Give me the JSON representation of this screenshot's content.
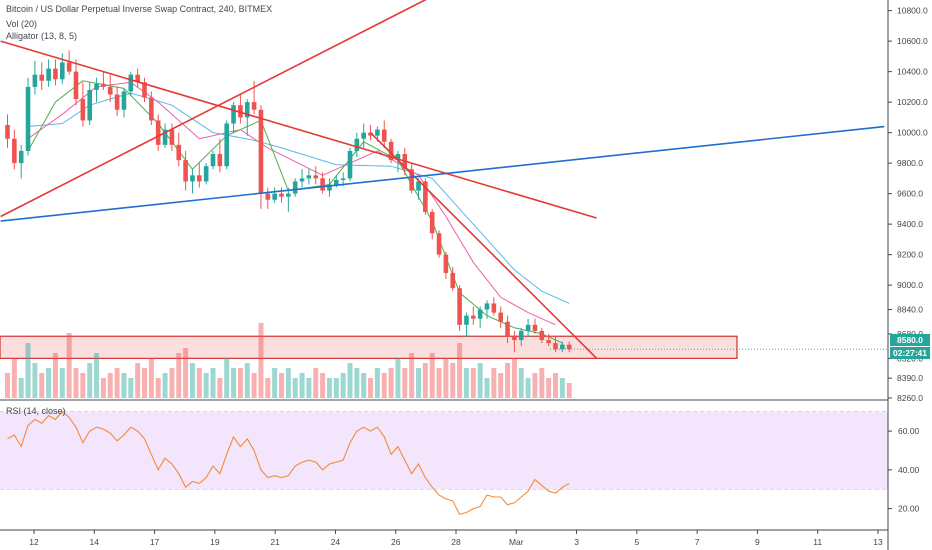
{
  "header": {
    "symbol_title": "Bitcoin / US Dollar Perpetual Inverse Swap Contract, 240, BITMEX",
    "volume_label": "Vol (20)",
    "alligator_label": "Alligator (13, 8, 5)",
    "rsi_label": "RSI (14, close)"
  },
  "price_axis": {
    "ticks": [
      "10800.0",
      "10600.0",
      "10400.0",
      "10200.0",
      "10000.0",
      "9800.0",
      "9600.0",
      "9400.0",
      "9200.0",
      "9000.0",
      "8840.0",
      "8680.0",
      "8520.0",
      "8390.0",
      "8260.0"
    ],
    "last_price": "8580.0",
    "countdown": "02:27:41"
  },
  "rsi_axis": {
    "ticks": [
      "60.00",
      "40.00",
      "20.00"
    ]
  },
  "time_axis": {
    "ticks": [
      "12",
      "14",
      "17",
      "19",
      "21",
      "24",
      "26",
      "28",
      "Mar",
      "3",
      "5",
      "7",
      "9",
      "11",
      "13"
    ]
  },
  "colors": {
    "up": "#26a69a",
    "down": "#ef5350",
    "trendline_red": "#e53935",
    "trendline_blue": "#1e6fcf",
    "jaw": "#5bb8e8",
    "teeth": "#ef5fa7",
    "lips": "#4caf50",
    "rsi_line": "#f28b3c",
    "rsi_band": "#f3e5fb",
    "zone_fill": "#f9d3d3",
    "zone_border": "#d32f2f"
  },
  "chart_data": {
    "type": "candlestick",
    "title": "Bitcoin / US Dollar Perpetual Inverse Swap Contract, 240, BITMEX",
    "xlabel": "",
    "ylabel": "",
    "ylim": [
      8260,
      10850
    ],
    "rsi_ylim": [
      10,
      75
    ],
    "x_tick_labels": [
      "12",
      "14",
      "17",
      "19",
      "21",
      "24",
      "26",
      "28",
      "Mar",
      "3",
      "5",
      "7",
      "9",
      "11",
      "13"
    ],
    "candles": [
      [
        10050,
        10120,
        9900,
        9960
      ],
      [
        9960,
        10020,
        9760,
        9800
      ],
      [
        9800,
        9920,
        9700,
        9880
      ],
      [
        9880,
        10360,
        9850,
        10300
      ],
      [
        10300,
        10470,
        10250,
        10380
      ],
      [
        10380,
        10460,
        10280,
        10340
      ],
      [
        10340,
        10480,
        10300,
        10420
      ],
      [
        10420,
        10480,
        10310,
        10350
      ],
      [
        10350,
        10520,
        10320,
        10460
      ],
      [
        10460,
        10540,
        10380,
        10400
      ],
      [
        10400,
        10480,
        10180,
        10220
      ],
      [
        10220,
        10330,
        10040,
        10080
      ],
      [
        10080,
        10330,
        10050,
        10280
      ],
      [
        10280,
        10360,
        10200,
        10320
      ],
      [
        10320,
        10400,
        10280,
        10300
      ],
      [
        10300,
        10380,
        10200,
        10250
      ],
      [
        10250,
        10300,
        10110,
        10150
      ],
      [
        10150,
        10290,
        10100,
        10270
      ],
      [
        10270,
        10400,
        10240,
        10380
      ],
      [
        10380,
        10420,
        10300,
        10330
      ],
      [
        10330,
        10360,
        10200,
        10230
      ],
      [
        10230,
        10270,
        10050,
        10080
      ],
      [
        10080,
        10120,
        9880,
        9920
      ],
      [
        9920,
        10060,
        9900,
        10020
      ],
      [
        10020,
        10060,
        9880,
        9920
      ],
      [
        9920,
        10000,
        9780,
        9820
      ],
      [
        9820,
        9880,
        9620,
        9680
      ],
      [
        9680,
        9760,
        9600,
        9720
      ],
      [
        9720,
        9800,
        9640,
        9680
      ],
      [
        9680,
        9800,
        9660,
        9780
      ],
      [
        9780,
        9880,
        9760,
        9860
      ],
      [
        9860,
        9960,
        9740,
        9780
      ],
      [
        9780,
        10080,
        9760,
        10060
      ],
      [
        10060,
        10200,
        10000,
        10180
      ],
      [
        10180,
        10250,
        10060,
        10100
      ],
      [
        10100,
        10220,
        9980,
        10200
      ],
      [
        10200,
        10340,
        10120,
        10150
      ],
      [
        10150,
        10180,
        9500,
        9600
      ],
      [
        9600,
        9640,
        9500,
        9560
      ],
      [
        9560,
        9640,
        9540,
        9600
      ],
      [
        9600,
        9640,
        9540,
        9580
      ],
      [
        9580,
        9640,
        9480,
        9600
      ],
      [
        9600,
        9700,
        9580,
        9680
      ],
      [
        9680,
        9760,
        9640,
        9700
      ],
      [
        9700,
        9760,
        9660,
        9720
      ],
      [
        9720,
        9780,
        9660,
        9700
      ],
      [
        9700,
        9740,
        9600,
        9620
      ],
      [
        9620,
        9700,
        9580,
        9660
      ],
      [
        9660,
        9720,
        9640,
        9690
      ],
      [
        9690,
        9740,
        9650,
        9700
      ],
      [
        9700,
        9900,
        9680,
        9880
      ],
      [
        9880,
        10000,
        9840,
        9960
      ],
      [
        9960,
        10060,
        9900,
        10000
      ],
      [
        10000,
        10050,
        9950,
        9980
      ],
      [
        9980,
        10040,
        9940,
        10020
      ],
      [
        10020,
        10080,
        9900,
        9940
      ],
      [
        9940,
        9960,
        9800,
        9820
      ],
      [
        9820,
        9880,
        9740,
        9860
      ],
      [
        9860,
        9900,
        9720,
        9760
      ],
      [
        9760,
        9800,
        9600,
        9620
      ],
      [
        9620,
        9700,
        9560,
        9680
      ],
      [
        9680,
        9700,
        9460,
        9480
      ],
      [
        9480,
        9500,
        9300,
        9340
      ],
      [
        9340,
        9360,
        9180,
        9200
      ],
      [
        9200,
        9220,
        9040,
        9080
      ],
      [
        9080,
        9120,
        8960,
        8980
      ],
      [
        8980,
        9000,
        8700,
        8740
      ],
      [
        8740,
        8820,
        8660,
        8800
      ],
      [
        8800,
        8860,
        8740,
        8780
      ],
      [
        8780,
        8860,
        8720,
        8840
      ],
      [
        8840,
        8900,
        8780,
        8880
      ],
      [
        8880,
        8920,
        8800,
        8820
      ],
      [
        8820,
        8860,
        8720,
        8760
      ],
      [
        8760,
        8800,
        8620,
        8660
      ],
      [
        8660,
        8700,
        8560,
        8640
      ],
      [
        8640,
        8720,
        8600,
        8700
      ],
      [
        8700,
        8780,
        8660,
        8740
      ],
      [
        8740,
        8780,
        8680,
        8700
      ],
      [
        8700,
        8720,
        8620,
        8640
      ],
      [
        8640,
        8680,
        8600,
        8620
      ],
      [
        8620,
        8660,
        8560,
        8580
      ],
      [
        8580,
        8630,
        8560,
        8610
      ],
      [
        8610,
        8630,
        8560,
        8580
      ]
    ],
    "volume": [
      0.25,
      0.4,
      0.2,
      0.55,
      0.35,
      0.25,
      0.3,
      0.45,
      0.3,
      0.65,
      0.3,
      0.25,
      0.35,
      0.45,
      0.2,
      0.25,
      0.3,
      0.25,
      0.2,
      0.35,
      0.3,
      0.4,
      0.2,
      0.25,
      0.3,
      0.45,
      0.5,
      0.35,
      0.3,
      0.25,
      0.3,
      0.2,
      0.4,
      0.3,
      0.3,
      0.35,
      0.25,
      0.75,
      0.2,
      0.3,
      0.25,
      0.3,
      0.2,
      0.25,
      0.2,
      0.3,
      0.25,
      0.2,
      0.2,
      0.25,
      0.35,
      0.3,
      0.25,
      0.2,
      0.3,
      0.25,
      0.3,
      0.4,
      0.3,
      0.45,
      0.3,
      0.35,
      0.45,
      0.3,
      0.4,
      0.35,
      0.55,
      0.3,
      0.3,
      0.35,
      0.2,
      0.3,
      0.25,
      0.35,
      0.4,
      0.3,
      0.2,
      0.25,
      0.3,
      0.2,
      0.25,
      0.2,
      0.15
    ],
    "rsi": [
      56,
      58,
      52,
      63,
      66,
      64,
      68,
      66,
      70,
      67,
      62,
      54,
      60,
      62,
      61,
      59,
      55,
      58,
      62,
      60,
      56,
      48,
      40,
      46,
      43,
      38,
      31,
      34,
      33,
      36,
      42,
      38,
      48,
      57,
      52,
      56,
      50,
      40,
      36,
      37,
      36,
      37,
      42,
      44,
      45,
      44,
      40,
      43,
      44,
      45,
      54,
      60,
      62,
      60,
      62,
      57,
      48,
      52,
      45,
      38,
      43,
      36,
      31,
      27,
      25,
      24,
      17,
      18,
      20,
      21,
      27,
      26,
      26,
      22,
      23,
      26,
      29,
      35,
      32,
      29,
      28,
      31,
      33
    ],
    "jaw": [
      [
        3,
        10040
      ],
      [
        8,
        10060
      ],
      [
        12,
        10180
      ],
      [
        18,
        10260
      ],
      [
        24,
        10180
      ],
      [
        30,
        10000
      ],
      [
        36,
        9950
      ],
      [
        40,
        9900
      ],
      [
        48,
        9790
      ],
      [
        56,
        9780
      ],
      [
        62,
        9700
      ],
      [
        66,
        9500
      ],
      [
        70,
        9300
      ],
      [
        74,
        9100
      ],
      [
        78,
        8960
      ],
      [
        82,
        8880
      ]
    ],
    "teeth": [
      [
        3,
        9960
      ],
      [
        8,
        10120
      ],
      [
        13,
        10300
      ],
      [
        18,
        10330
      ],
      [
        22,
        10200
      ],
      [
        28,
        9960
      ],
      [
        34,
        10020
      ],
      [
        38,
        9900
      ],
      [
        46,
        9720
      ],
      [
        54,
        9880
      ],
      [
        60,
        9720
      ],
      [
        64,
        9450
      ],
      [
        68,
        9150
      ],
      [
        72,
        8920
      ],
      [
        76,
        8820
      ],
      [
        80,
        8740
      ]
    ],
    "lips": [
      [
        3,
        9880
      ],
      [
        7,
        10200
      ],
      [
        11,
        10340
      ],
      [
        17,
        10290
      ],
      [
        22,
        10060
      ],
      [
        27,
        9760
      ],
      [
        32,
        9980
      ],
      [
        37,
        10080
      ],
      [
        41,
        9620
      ],
      [
        47,
        9660
      ],
      [
        52,
        9940
      ],
      [
        57,
        9820
      ],
      [
        62,
        9420
      ],
      [
        66,
        8950
      ],
      [
        70,
        8800
      ],
      [
        74,
        8720
      ],
      [
        78,
        8680
      ],
      [
        81,
        8620
      ]
    ],
    "trendlines": [
      {
        "color": "red",
        "from": [
          -1,
          10600
        ],
        "to": [
          86,
          9440
        ]
      },
      {
        "color": "red",
        "from": [
          -1,
          9450
        ],
        "to": [
          71,
          11100
        ]
      },
      {
        "color": "red",
        "from": [
          53,
          10000
        ],
        "to": [
          86,
          8520
        ]
      },
      {
        "color": "blue",
        "from": [
          -1,
          9420
        ],
        "to": [
          128,
          10040
        ]
      }
    ],
    "support_zone": [
      8520,
      8665
    ],
    "last_price": 8580
  }
}
